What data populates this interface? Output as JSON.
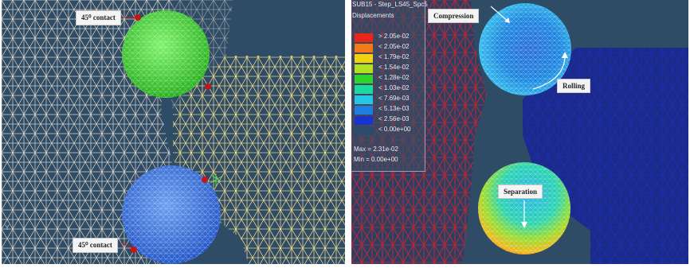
{
  "left_view": {
    "label_top": "45⁰ contact",
    "label_bottom": "45⁰ contact",
    "axis_label": "Y"
  },
  "right_view": {
    "window_title": "SUB15 - Step_LS45_Spc5",
    "result_name": "Displacements",
    "legend": [
      {
        "label": "> 2.05e-02",
        "color": "#e8261a"
      },
      {
        "label": "< 2.05e-02",
        "color": "#f47a18"
      },
      {
        "label": "< 1.79e-02",
        "color": "#f2d312"
      },
      {
        "label": "< 1.54e-02",
        "color": "#b0e21e"
      },
      {
        "label": "< 1.28e-02",
        "color": "#2ed42a"
      },
      {
        "label": "< 1.03e-02",
        "color": "#19dba0"
      },
      {
        "label": "< 7.69e-03",
        "color": "#22c8e6"
      },
      {
        "label": "< 5.13e-03",
        "color": "#1c7fe0"
      },
      {
        "label": "< 2.56e-03",
        "color": "#1834d0"
      },
      {
        "label": "< 0.00e+00",
        "color": "#2e4a6a"
      }
    ],
    "max_text": "Max = 2.31e-02",
    "min_text": "Min = 0.00e+00",
    "callout_compression": "Compression",
    "callout_rolling": "Rolling",
    "callout_separation": "Separation"
  }
}
